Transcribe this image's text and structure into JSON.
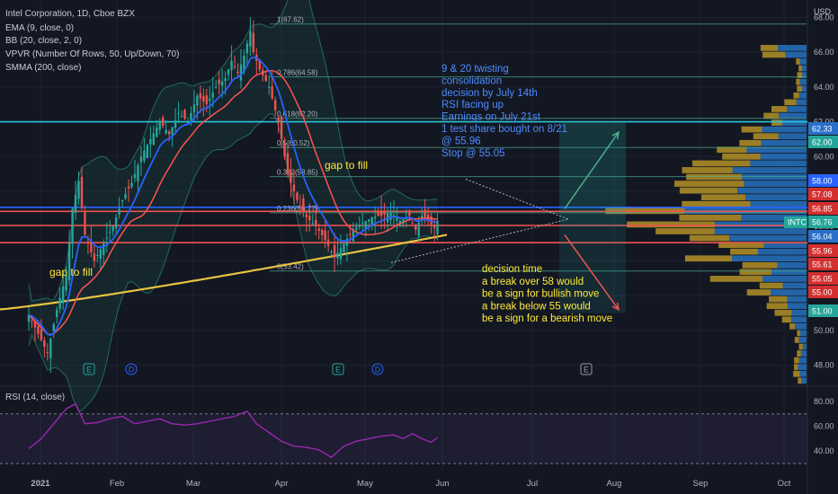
{
  "header": {
    "title": "Intel Corporation, 1D, Cboe BZX",
    "indicators": [
      "EMA (9, close, 0)",
      "BB (20, close, 2, 0)",
      "VPVR (Number Of Rows, 50, Up/Down, 70)",
      "SMMA (200, close)"
    ],
    "currency": "USD",
    "rsi_label": "RSI (14, close)"
  },
  "colors": {
    "background": "#131722",
    "grid": "#1e2230",
    "up": "#ef5350",
    "down": "#26a69a",
    "ema": "#2962ff",
    "bb_mid": "#ff5252",
    "bb_band": "#1b6b5e",
    "smma": "#e8c340",
    "rsi": "#9c27b0",
    "vp_up": "#2a7fd4",
    "vp_down": "#c9a227",
    "note_blue": "#4d8cff",
    "note_yellow": "#ffeb3b"
  },
  "chart_data": {
    "type": "candlestick",
    "symbol": "INTC",
    "x_ticks": [
      "2021",
      "Feb",
      "Mar",
      "Apr",
      "May",
      "Jun",
      "Jul",
      "Aug",
      "Sep",
      "Oct"
    ],
    "y_ticks": [
      48,
      50,
      52,
      54,
      56,
      58,
      60,
      62,
      64,
      66,
      68
    ],
    "y_tick_labels": [
      "48.00",
      "50.00",
      "52.00",
      "54.00",
      "56.00",
      "58.00",
      "60.00",
      "62.00",
      "64.00",
      "66.00",
      "68.00"
    ],
    "ylim": [
      46.9,
      69.0
    ],
    "close_path": [
      [
        0,
        50.9
      ],
      [
        3,
        49.8
      ],
      [
        6,
        48.7
      ],
      [
        9,
        51.2
      ],
      [
        12,
        53.2
      ],
      [
        14,
        57.0
      ],
      [
        16,
        58.6
      ],
      [
        18,
        55.5
      ],
      [
        21,
        54.0
      ],
      [
        24,
        55.0
      ],
      [
        27,
        56.0
      ],
      [
        30,
        57.5
      ],
      [
        33,
        58.5
      ],
      [
        36,
        60.0
      ],
      [
        39,
        61.0
      ],
      [
        42,
        62.0
      ],
      [
        45,
        61.3
      ],
      [
        48,
        62.5
      ],
      [
        51,
        62.0
      ],
      [
        54,
        63.5
      ],
      [
        57,
        63.0
      ],
      [
        60,
        64.0
      ],
      [
        63,
        64.5
      ],
      [
        65,
        65.5
      ],
      [
        67,
        64.8
      ],
      [
        69,
        65.8
      ],
      [
        71,
        67.2
      ],
      [
        72,
        66.0
      ],
      [
        74,
        65.0
      ],
      [
        77,
        64.0
      ],
      [
        80,
        62.0
      ],
      [
        83,
        59.0
      ],
      [
        86,
        57.5
      ],
      [
        89,
        56.5
      ],
      [
        92,
        56.0
      ],
      [
        95,
        55.2
      ],
      [
        98,
        54.2
      ],
      [
        101,
        55.0
      ],
      [
        104,
        55.8
      ],
      [
        107,
        56.2
      ],
      [
        110,
        56.5
      ],
      [
        113,
        56.6
      ],
      [
        116,
        56.8
      ],
      [
        119,
        56.3
      ],
      [
        122,
        56.6
      ],
      [
        124,
        55.8
      ],
      [
        126,
        56.6
      ],
      [
        128,
        56.3
      ],
      [
        130,
        55.9
      ],
      [
        131,
        56.3
      ]
    ],
    "fib_levels": [
      {
        "ratio": "1",
        "price": 67.62,
        "label": "1(67.62)"
      },
      {
        "ratio": "0.786",
        "price": 64.58,
        "label": "0.786(64.58)"
      },
      {
        "ratio": "0.618",
        "price": 62.2,
        "label": "0.618(62.20)"
      },
      {
        "ratio": "0.5",
        "price": 60.52,
        "label": "0.5(60.52)"
      },
      {
        "ratio": "0.382",
        "price": 58.85,
        "label": "0.382(58.85)"
      },
      {
        "ratio": "0.236",
        "price": 56.77,
        "label": "0.236(56.77)"
      },
      {
        "ratio": "0",
        "price": 53.42,
        "label": "0(53.42)"
      }
    ],
    "horizontal_levels": [
      {
        "price": 62.0,
        "color": "#26c6da"
      },
      {
        "price": 57.08,
        "color": "#2962ff"
      },
      {
        "price": 56.85,
        "color": "#ef5350"
      },
      {
        "price": 56.04,
        "color": "#ef5350"
      },
      {
        "price": 55.05,
        "color": "#ef5350"
      }
    ],
    "price_tags": [
      {
        "price": 62.33,
        "label": "62.33",
        "color": "#2a6fc9"
      },
      {
        "price": 62.0,
        "label": "62.00",
        "color": "#26a69a"
      },
      {
        "price": 58.0,
        "label": "58.00",
        "color": "#2962ff"
      },
      {
        "price": 57.08,
        "label": "57.08",
        "color": "#d32f2f"
      },
      {
        "price": 56.85,
        "label": "56.85",
        "color": "#d32f2f"
      },
      {
        "price": 56.76,
        "label": "56.76",
        "color": "#26a69a",
        "symbol": "INTC"
      },
      {
        "price": 56.04,
        "label": "56.04",
        "color": "#2a6fc9"
      },
      {
        "price": 55.96,
        "label": "55.96",
        "color": "#d32f2f"
      },
      {
        "price": 55.61,
        "label": "55.61",
        "color": "#d32f2f"
      },
      {
        "price": 55.05,
        "label": "55.05",
        "color": "#d32f2f"
      },
      {
        "price": 55.0,
        "label": "55.00",
        "color": "#d32f2f"
      },
      {
        "price": 51.0,
        "label": "51.00",
        "color": "#26a69a"
      }
    ],
    "events": [
      {
        "type": "E",
        "date": "Jan-end"
      },
      {
        "type": "D",
        "date": "Feb-start"
      },
      {
        "type": "E",
        "date": "Apr-end"
      },
      {
        "type": "D",
        "date": "May-start"
      },
      {
        "type": "E",
        "date": "Jul-end"
      }
    ],
    "annotations": {
      "gap_left": "gap to fill",
      "gap_top": "gap to fill",
      "notes_blue": [
        "9 & 20 twisting",
        "consolidation",
        "decision by July 14th",
        "RSI facing up",
        "Earnings on July 21st",
        "1 test share bought on 8/21",
        "@ 55.96",
        "Stop @ 55.05"
      ],
      "notes_yellow": [
        "decision time",
        "a break over 58 would",
        "be a sign for bullish move",
        "a break below 55 would",
        "be a sign for a bearish move"
      ]
    },
    "rsi": {
      "y_ticks": [
        40,
        60,
        80
      ],
      "y_tick_labels": [
        "40.00",
        "60.00",
        "80.00"
      ],
      "bands": [
        70,
        30
      ],
      "ylim": [
        25,
        90
      ],
      "path": [
        [
          0,
          42
        ],
        [
          4,
          50
        ],
        [
          8,
          62
        ],
        [
          12,
          74
        ],
        [
          15,
          78
        ],
        [
          18,
          62
        ],
        [
          22,
          63
        ],
        [
          26,
          66
        ],
        [
          30,
          68
        ],
        [
          34,
          62
        ],
        [
          38,
          64
        ],
        [
          42,
          66
        ],
        [
          46,
          62
        ],
        [
          50,
          61
        ],
        [
          54,
          62
        ],
        [
          58,
          64
        ],
        [
          62,
          66
        ],
        [
          66,
          68
        ],
        [
          70,
          72
        ],
        [
          73,
          62
        ],
        [
          77,
          55
        ],
        [
          81,
          48
        ],
        [
          85,
          44
        ],
        [
          89,
          43
        ],
        [
          93,
          41
        ],
        [
          97,
          35
        ],
        [
          101,
          44
        ],
        [
          105,
          48
        ],
        [
          109,
          50
        ],
        [
          113,
          52
        ],
        [
          117,
          53
        ],
        [
          120,
          50
        ],
        [
          123,
          54
        ],
        [
          126,
          50
        ],
        [
          129,
          47
        ],
        [
          131,
          51
        ]
      ]
    }
  }
}
